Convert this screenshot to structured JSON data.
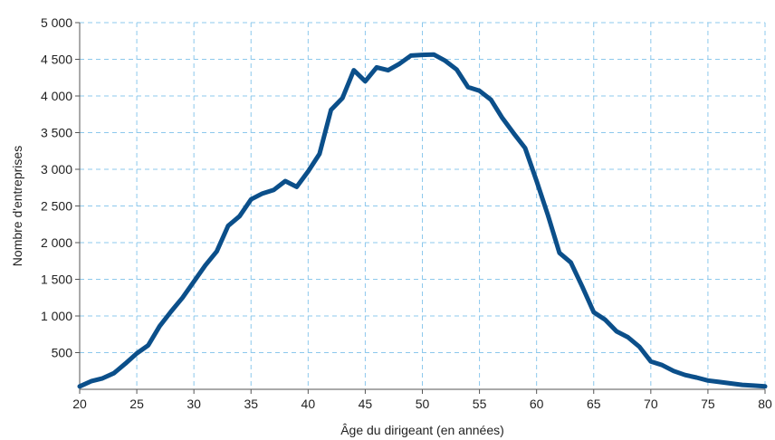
{
  "chart_data": {
    "type": "line",
    "title": "",
    "xlabel": "Âge du dirigeant (en années)",
    "ylabel": "Nombre d'entreprises",
    "xlim": [
      20,
      80
    ],
    "ylim": [
      0,
      5000
    ],
    "x_ticks": [
      20,
      25,
      30,
      35,
      40,
      45,
      50,
      55,
      60,
      65,
      70,
      75,
      80
    ],
    "y_ticks": [
      500,
      1000,
      1500,
      2000,
      2500,
      3000,
      3500,
      4000,
      4500,
      5000
    ],
    "y_tick_labels": [
      "500",
      "1 000",
      "1 500",
      "2 000",
      "2 500",
      "3 000",
      "3 500",
      "4 000",
      "4 500",
      "5 000"
    ],
    "x_tick_labels": [
      "20",
      "25",
      "30",
      "35",
      "40",
      "45",
      "50",
      "55",
      "60",
      "65",
      "70",
      "75",
      "80"
    ],
    "grid": true,
    "legend": "none",
    "series": [
      {
        "color": "#0b4f8a",
        "x": [
          20,
          21,
          22,
          23,
          24,
          25,
          26,
          27,
          28,
          29,
          30,
          31,
          32,
          33,
          34,
          35,
          36,
          37,
          38,
          39,
          40,
          41,
          42,
          43,
          44,
          45,
          46,
          47,
          48,
          49,
          50,
          51,
          52,
          53,
          54,
          55,
          56,
          57,
          58,
          59,
          60,
          61,
          62,
          63,
          64,
          65,
          66,
          67,
          68,
          69,
          70,
          71,
          72,
          73,
          74,
          75,
          76,
          77,
          78,
          79,
          80
        ],
        "values": [
          40,
          110,
          150,
          220,
          350,
          490,
          600,
          860,
          1060,
          1250,
          1470,
          1690,
          1880,
          2230,
          2360,
          2590,
          2670,
          2720,
          2840,
          2760,
          2970,
          3210,
          3810,
          3970,
          4350,
          4200,
          4390,
          4350,
          4440,
          4550,
          4560,
          4565,
          4480,
          4360,
          4120,
          4070,
          3950,
          3700,
          3490,
          3290,
          2840,
          2370,
          1860,
          1730,
          1400,
          1050,
          950,
          790,
          710,
          580,
          380,
          330,
          250,
          195,
          160,
          120,
          100,
          80,
          60,
          50,
          40
        ]
      }
    ]
  }
}
